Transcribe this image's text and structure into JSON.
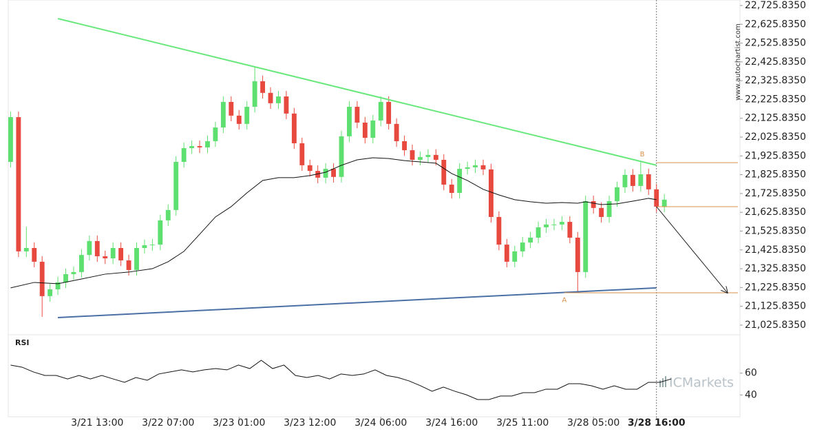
{
  "chart_data": {
    "type": "candlestick",
    "open": [
      21894,
      22132,
      21418,
      21436,
      21363,
      21180,
      21216,
      21253,
      21297,
      21308,
      21399,
      21473,
      21392,
      21381,
      21436,
      21370,
      21319,
      21436,
      21451,
      21454,
      21583,
      21638,
      21894,
      21967,
      21978,
      21971,
      22004,
      22077,
      22213,
      22140,
      22096,
      22187,
      22323,
      22261,
      22206,
      22242,
      22151,
      21993,
      21876,
      21846,
      21810,
      21857,
      21814,
      22030,
      22187,
      22103,
      22022,
      22114,
      22213,
      22096,
      22004,
      21956,
      21905,
      21920,
      21931,
      21905,
      21773,
      21729,
      21857,
      21865,
      21876,
      21854,
      21601,
      21454,
      21363,
      21418,
      21465,
      21491,
      21546,
      21561,
      21561,
      21575,
      21491,
      21308,
      21685,
      21649,
      21601,
      21685,
      21759,
      21825,
      21766,
      21828,
      21748,
      21656
    ],
    "high": [
      22162,
      22162,
      21550,
      21466,
      21393,
      21246,
      21283,
      21327,
      21338,
      21429,
      21503,
      21503,
      21422,
      21466,
      21466,
      21400,
      21466,
      21481,
      21484,
      21613,
      21668,
      21924,
      21997,
      22008,
      22008,
      22034,
      22107,
      22243,
      22243,
      22170,
      22217,
      22400,
      22353,
      22291,
      22272,
      22272,
      22181,
      22023,
      21906,
      21876,
      21887,
      21887,
      22060,
      22217,
      22217,
      22133,
      22144,
      22243,
      22243,
      22126,
      22034,
      21986,
      21950,
      21961,
      21961,
      21935,
      21803,
      21887,
      21895,
      21906,
      21906,
      21884,
      21631,
      21484,
      21448,
      21495,
      21521,
      21576,
      21591,
      21591,
      21605,
      21605,
      21521,
      21715,
      21715,
      21679,
      21715,
      21789,
      21855,
      21856,
      21894,
      21858,
      21778,
      21723
    ],
    "low": [
      21864,
      21388,
      21388,
      21333,
      21070,
      21150,
      21186,
      21223,
      21267,
      21278,
      21369,
      21362,
      21351,
      21351,
      21340,
      21289,
      21289,
      21406,
      21421,
      21424,
      21553,
      21608,
      21864,
      21937,
      21941,
      21941,
      21974,
      22047,
      22110,
      22066,
      22066,
      22157,
      22231,
      22176,
      22176,
      22121,
      21963,
      21846,
      21816,
      21780,
      21780,
      21784,
      21784,
      22000,
      22073,
      21992,
      21992,
      22084,
      22066,
      21974,
      21926,
      21875,
      21875,
      21890,
      21875,
      21743,
      21699,
      21699,
      21827,
      21835,
      21824,
      21571,
      21424,
      21333,
      21333,
      21388,
      21435,
      21461,
      21516,
      21531,
      21531,
      21461,
      21198,
      21278,
      21619,
      21571,
      21571,
      21655,
      21729,
      21736,
      21736,
      21718,
      21626,
      21626
    ],
    "close": [
      22132,
      21418,
      21436,
      21363,
      21180,
      21216,
      21253,
      21297,
      21308,
      21399,
      21473,
      21392,
      21381,
      21436,
      21370,
      21319,
      21436,
      21451,
      21454,
      21583,
      21638,
      21894,
      21967,
      21978,
      21971,
      22004,
      22077,
      22213,
      22140,
      22096,
      22187,
      22323,
      22261,
      22206,
      22242,
      22151,
      21993,
      21876,
      21846,
      21810,
      21857,
      21814,
      22030,
      22187,
      22103,
      22022,
      22114,
      22213,
      22096,
      22004,
      21956,
      21905,
      21920,
      21931,
      21905,
      21773,
      21729,
      21857,
      21865,
      21876,
      21854,
      21601,
      21454,
      21363,
      21418,
      21465,
      21491,
      21546,
      21561,
      21561,
      21575,
      21491,
      21308,
      21685,
      21649,
      21601,
      21685,
      21759,
      21825,
      21766,
      21828,
      21748,
      21656,
      21693
    ],
    "up_color": "#5ee070",
    "down_color": "#e8493f",
    "ylim": [
      20989,
      22755
    ],
    "xlim": [
      -0.3,
      92.6
    ],
    "yticks": [
      {
        "value": 22725.835,
        "label": "22,725.8350"
      },
      {
        "value": 22625.835,
        "label": "22,625.8350"
      },
      {
        "value": 22525.835,
        "label": "22,525.8350"
      },
      {
        "value": 22425.835,
        "label": "22,425.8350"
      },
      {
        "value": 22325.835,
        "label": "22,325.8350"
      },
      {
        "value": 22225.835,
        "label": "22,225.8350"
      },
      {
        "value": 22125.835,
        "label": "22,125.8350"
      },
      {
        "value": 22025.835,
        "label": "22,025.8350"
      },
      {
        "value": 21925.835,
        "label": "21,925.8350"
      },
      {
        "value": 21825.835,
        "label": "21,825.8350"
      },
      {
        "value": 21725.835,
        "label": "21,725.8350"
      },
      {
        "value": 21625.835,
        "label": "21,625.8350"
      },
      {
        "value": 21525.835,
        "label": "21,525.8350"
      },
      {
        "value": 21425.835,
        "label": "21,425.8350"
      },
      {
        "value": 21325.835,
        "label": "21,325.8350"
      },
      {
        "value": 21225.835,
        "label": "21,225.8350"
      },
      {
        "value": 21125.835,
        "label": "21,125.8350"
      },
      {
        "value": 21025.835,
        "label": "21,025.8350"
      }
    ],
    "xticks": [
      {
        "value": 11,
        "label": "3/21 13:00"
      },
      {
        "value": 20,
        "label": "3/22 07:00"
      },
      {
        "value": 29,
        "label": "3/23 01:00"
      },
      {
        "value": 38,
        "label": "3/23 12:00"
      },
      {
        "value": 47,
        "label": "3/24 06:00"
      },
      {
        "value": 56,
        "label": "3/24 16:00"
      },
      {
        "value": 65,
        "label": "3/25 11:00"
      },
      {
        "value": 74,
        "label": "3/28 05:00"
      },
      {
        "value": 82,
        "label": "3/28 16:00"
      }
    ],
    "current_index": 82,
    "moving_average": {
      "color": "#111111",
      "x": [
        0,
        3,
        6,
        9,
        12,
        15,
        18,
        20,
        22,
        24,
        26,
        28,
        30,
        32,
        34,
        36,
        38,
        40,
        42,
        44,
        46,
        48,
        50,
        52,
        54,
        56,
        58,
        60,
        62,
        64,
        66,
        68,
        70,
        72,
        73,
        75,
        77,
        79,
        81,
        82
      ],
      "values": [
        21224,
        21253,
        21246,
        21271,
        21297,
        21308,
        21326,
        21363,
        21418,
        21509,
        21601,
        21656,
        21729,
        21795,
        21810,
        21810,
        21821,
        21839,
        21876,
        21905,
        21916,
        21912,
        21901,
        21894,
        21887,
        21832,
        21795,
        21748,
        21718,
        21693,
        21682,
        21674,
        21678,
        21674,
        21682,
        21667,
        21671,
        21685,
        21700,
        21693
      ]
    },
    "trendlines": [
      {
        "color": "#66e87a",
        "points": [
          [
            6,
            22656
          ],
          [
            82,
            21876
          ]
        ]
      },
      {
        "color": "#4a6fa5",
        "points": [
          [
            6,
            21066
          ],
          [
            82,
            21224
          ]
        ]
      }
    ],
    "levels": [
      {
        "price": 21890,
        "from": 82
      },
      {
        "price": 21656,
        "from": 82
      },
      {
        "price": 21198,
        "from": 70.3
      }
    ],
    "level_color": "#d9914a",
    "annotations": [
      {
        "text": "A",
        "x": 70.3,
        "price": 21160
      },
      {
        "text": "B",
        "x": 80.2,
        "price": 21935
      }
    ],
    "arrow": [
      [
        82,
        21656
      ],
      [
        91,
        21198
      ]
    ],
    "rsi": {
      "label": "RSI",
      "ylim": [
        20,
        80
      ],
      "yticks": [
        60,
        40
      ],
      "color": "#111111",
      "values": [
        67.4,
        65.5,
        61.1,
        57.9,
        57.9,
        54.7,
        57.9,
        54.7,
        57.9,
        54.7,
        51.6,
        56,
        53.5,
        59.2,
        61.1,
        63,
        61.1,
        63,
        64.2,
        63,
        67.4,
        64.2,
        71.8,
        64.2,
        67.4,
        57.9,
        56,
        57.9,
        54.7,
        59.2,
        57.9,
        59.2,
        63,
        57.9,
        56,
        52.8,
        48.4,
        43.4,
        47.2,
        43.4,
        40.2,
        35.8,
        35.8,
        39,
        39,
        42.1,
        42.1,
        45.3,
        45.3,
        50.3,
        50.3,
        48.4,
        45.3,
        48.4,
        45.3,
        45.3,
        51.6,
        51.6,
        54.7
      ]
    },
    "watermark": "www.autochartist.com",
    "logo": "ICMarkets"
  }
}
